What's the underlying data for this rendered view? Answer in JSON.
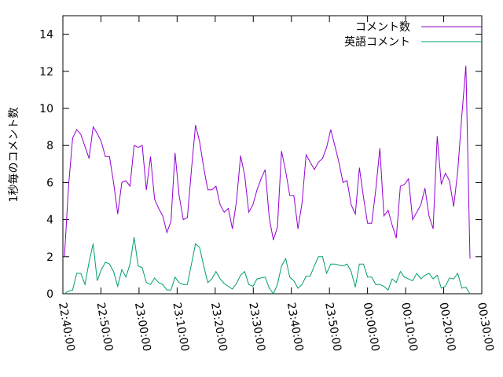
{
  "chart_data": {
    "type": "line",
    "title": "",
    "ylabel": "1秒毎のコメント数",
    "xlabel": "",
    "xlim": [
      "22:40:00",
      "00:30:00"
    ],
    "ylim": [
      0,
      15
    ],
    "x_ticks": [
      "22:40:00",
      "22:50:00",
      "23:00:00",
      "23:10:00",
      "23:20:00",
      "23:30:00",
      "23:40:00",
      "23:50:00",
      "00:00:00",
      "00:10:00",
      "00:20:00",
      "00:30:00"
    ],
    "y_ticks": [
      0,
      2,
      4,
      6,
      8,
      10,
      12,
      14
    ],
    "grid": false,
    "legend_position": "top-right",
    "x_interval_minutes": 1,
    "series": [
      {
        "name": "コメント数",
        "color": "#9400d3",
        "values": [
          2.0,
          5.8,
          8.4,
          8.85,
          8.6,
          7.95,
          7.3,
          9.0,
          8.65,
          8.2,
          7.4,
          7.4,
          6.0,
          4.3,
          6.0,
          6.1,
          5.8,
          8.0,
          7.9,
          8.0,
          5.6,
          7.4,
          5.1,
          4.6,
          4.2,
          3.3,
          3.9,
          7.6,
          5.3,
          4.0,
          4.1,
          6.7,
          9.1,
          8.2,
          6.8,
          5.6,
          5.6,
          5.8,
          4.8,
          4.4,
          4.6,
          3.5,
          5.0,
          7.45,
          6.4,
          4.4,
          4.8,
          5.6,
          6.2,
          6.7,
          4.1,
          2.9,
          3.6,
          7.7,
          6.6,
          5.3,
          5.3,
          3.5,
          4.9,
          7.5,
          7.1,
          6.7,
          7.1,
          7.3,
          7.9,
          8.85,
          8.0,
          7.1,
          6.0,
          6.1,
          4.8,
          4.3,
          6.8,
          5.2,
          3.8,
          3.8,
          5.6,
          7.85,
          4.2,
          4.5,
          3.7,
          3.0,
          5.8,
          5.9,
          6.2,
          4.0,
          4.4,
          4.8,
          5.7,
          4.2,
          3.5,
          8.5,
          5.9,
          6.5,
          6.1,
          4.7,
          6.6,
          9.6,
          12.3,
          1.9
        ]
      },
      {
        "name": "英語コメント",
        "color": "#009e73",
        "values": [
          0.0,
          0.15,
          0.2,
          1.1,
          1.1,
          0.5,
          1.7,
          2.7,
          0.7,
          1.3,
          1.7,
          1.6,
          1.2,
          0.4,
          1.3,
          0.9,
          1.6,
          3.05,
          1.5,
          1.4,
          0.6,
          0.5,
          0.85,
          0.6,
          0.5,
          0.2,
          0.2,
          0.9,
          0.6,
          0.5,
          0.5,
          1.6,
          2.7,
          2.5,
          1.5,
          0.6,
          0.8,
          1.2,
          0.8,
          0.55,
          0.4,
          0.25,
          0.55,
          1.0,
          1.2,
          0.5,
          0.4,
          0.8,
          0.85,
          0.9,
          0.3,
          0.0,
          0.5,
          1.5,
          1.9,
          0.9,
          0.7,
          0.3,
          0.5,
          0.95,
          0.95,
          1.5,
          2.0,
          2.0,
          1.1,
          1.6,
          1.6,
          1.55,
          1.5,
          1.6,
          1.2,
          0.35,
          1.6,
          1.6,
          0.9,
          0.9,
          0.5,
          0.5,
          0.4,
          0.2,
          0.8,
          0.6,
          1.2,
          0.9,
          0.8,
          0.7,
          1.1,
          0.8,
          1.0,
          1.1,
          0.8,
          1.0,
          0.3,
          0.4,
          0.85,
          0.8,
          1.1,
          0.3,
          0.35,
          0.0
        ]
      }
    ]
  }
}
